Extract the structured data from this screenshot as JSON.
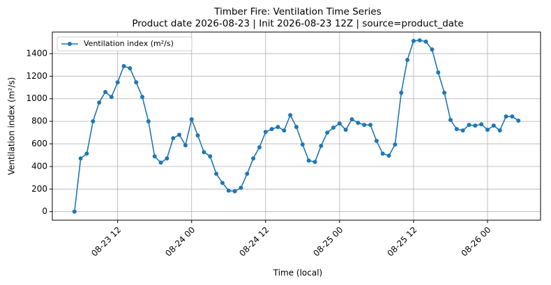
{
  "chart_data": {
    "type": "line",
    "title": "Timber Fire: Ventilation Time Series",
    "subtitle": "Product date 2026-08-23 | Init 2026-08-23 12Z | source=product_date",
    "x_label": "Time (local)",
    "y_label": "Ventilation index (m²/s)",
    "x": [
      "08-23 05",
      "08-23 06",
      "08-23 07",
      "08-23 08",
      "08-23 09",
      "08-23 10",
      "08-23 11",
      "08-23 12",
      "08-23 13",
      "08-23 14",
      "08-23 15",
      "08-23 16",
      "08-23 17",
      "08-23 18",
      "08-23 19",
      "08-23 20",
      "08-23 21",
      "08-23 22",
      "08-23 23",
      "08-24 00",
      "08-24 01",
      "08-24 02",
      "08-24 03",
      "08-24 04",
      "08-24 05",
      "08-24 06",
      "08-24 07",
      "08-24 08",
      "08-24 09",
      "08-24 10",
      "08-24 11",
      "08-24 12",
      "08-24 13",
      "08-24 14",
      "08-24 15",
      "08-24 16",
      "08-24 17",
      "08-24 18",
      "08-24 19",
      "08-24 20",
      "08-24 21",
      "08-24 22",
      "08-24 23",
      "08-25 00",
      "08-25 01",
      "08-25 02",
      "08-25 03",
      "08-25 04",
      "08-25 05",
      "08-25 06",
      "08-25 07",
      "08-25 08",
      "08-25 09",
      "08-25 10",
      "08-25 11",
      "08-25 12",
      "08-25 13",
      "08-25 14",
      "08-25 15",
      "08-25 16",
      "08-25 17",
      "08-25 18",
      "08-25 19",
      "08-25 20",
      "08-25 21",
      "08-25 22",
      "08-25 23",
      "08-26 00",
      "08-26 01",
      "08-26 02",
      "08-26 03",
      "08-26 04",
      "08-26 05"
    ],
    "series": [
      {
        "name": "Ventilation index (m²/s)",
        "color": "#1f77b4",
        "values": [
          0,
          471,
          514,
          800,
          966,
          1060,
          1016,
          1146,
          1289,
          1270,
          1146,
          1016,
          800,
          490,
          434,
          471,
          650,
          681,
          588,
          818,
          675,
          527,
          490,
          335,
          254,
          186,
          180,
          211,
          335,
          471,
          570,
          706,
          731,
          750,
          719,
          855,
          750,
          595,
          452,
          440,
          582,
          700,
          744,
          781,
          725,
          818,
          787,
          768,
          768,
          626,
          514,
          496,
          595,
          1053,
          1344,
          1512,
          1518,
          1506,
          1437,
          1233,
          1053,
          812,
          731,
          719,
          768,
          762,
          774,
          725,
          762,
          719,
          843,
          843,
          806
        ]
      }
    ],
    "xlim": [
      "08-23 01:24",
      "08-26 08:36"
    ],
    "xticks": [
      "08-23 12",
      "08-24 00",
      "08-24 12",
      "08-25 00",
      "08-25 12",
      "08-26 00"
    ],
    "ylim": [
      -76,
      1591
    ],
    "yticks": [
      0,
      200,
      400,
      600,
      800,
      1000,
      1200,
      1400
    ],
    "grid": true,
    "legend": "upper left"
  }
}
